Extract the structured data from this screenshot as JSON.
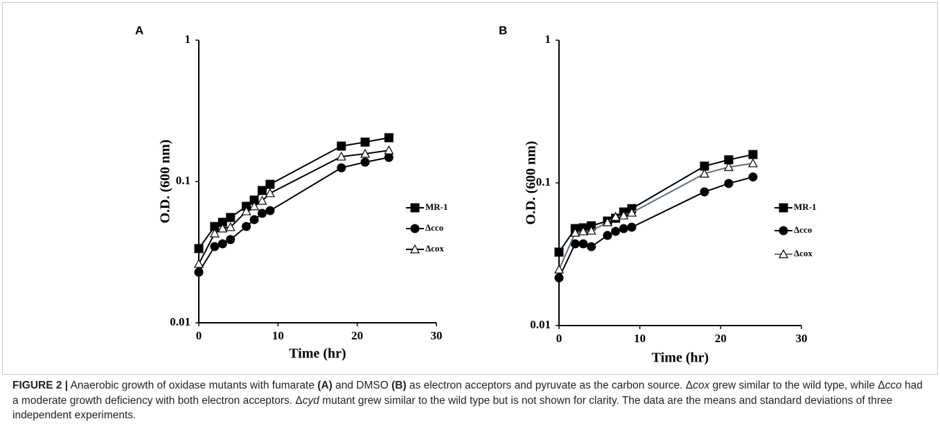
{
  "chart_data": [
    {
      "type": "line",
      "panel_label": "A",
      "ylabel": "O.D. (600 nm)",
      "xlabel": "Time (hr)",
      "x": [
        0,
        2,
        3,
        4,
        6,
        7,
        8,
        9,
        18,
        21,
        24
      ],
      "xlim": [
        0,
        30
      ],
      "xticks": [
        0,
        10,
        20,
        30
      ],
      "ylim": [
        0.01,
        1
      ],
      "yticks": [
        0.01,
        0.1,
        1
      ],
      "ylog": true,
      "legend": "right",
      "series": [
        {
          "name": "MR-1",
          "color": "#000000",
          "marker": "square",
          "values": [
            0.0335,
            0.048,
            0.0514,
            0.0556,
            0.0667,
            0.0738,
            0.0863,
            0.0955,
            0.178,
            0.19,
            0.204
          ]
        },
        {
          "name": "Δcco",
          "color": "#000000",
          "marker": "circle",
          "values": [
            0.0228,
            0.0346,
            0.0362,
            0.0388,
            0.048,
            0.0537,
            0.0595,
            0.0622,
            0.125,
            0.137,
            0.148
          ]
        },
        {
          "name": "Δcox",
          "color": "#000000",
          "marker": "triangle-open",
          "values": [
            0.0261,
            0.0429,
            0.0465,
            0.0475,
            0.0615,
            0.0667,
            0.073,
            0.0826,
            0.15,
            0.157,
            0.166
          ]
        }
      ]
    },
    {
      "type": "line",
      "panel_label": "B",
      "ylabel": "O.D. (600 nm)",
      "xlabel": "Time (hr)",
      "x": [
        0,
        2,
        3,
        4,
        6,
        7,
        8,
        9,
        18,
        21,
        24
      ],
      "xlim": [
        0,
        30
      ],
      "xticks": [
        0,
        10,
        20,
        30
      ],
      "ylim": [
        0.01,
        1
      ],
      "yticks": [
        0.01,
        0.1,
        1
      ],
      "ylog": true,
      "legend": "right",
      "series": [
        {
          "name": "MR-1",
          "color": "#000000",
          "marker": "square",
          "values": [
            0.0327,
            0.0478,
            0.0484,
            0.05,
            0.054,
            0.0565,
            0.0625,
            0.066,
            0.131,
            0.145,
            0.158
          ]
        },
        {
          "name": "Δcco",
          "color": "#000000",
          "marker": "circle",
          "values": [
            0.0216,
            0.0374,
            0.0374,
            0.0357,
            0.0428,
            0.0457,
            0.0478,
            0.0489,
            0.0865,
            0.099,
            0.11
          ]
        },
        {
          "name": "Δcox",
          "color": "#5b7083",
          "marker": "triangle-open",
          "values": [
            0.0247,
            0.0447,
            0.0457,
            0.0462,
            0.0529,
            0.0578,
            0.0591,
            0.0618,
            0.116,
            0.129,
            0.137
          ]
        }
      ]
    }
  ],
  "caption": {
    "runs": [
      "FIGURE 2 |",
      " Anaerobic growth of oxidase mutants with fumarate ",
      "(A)",
      " and DMSO ",
      "(B)",
      " as electron acceptors and pyruvate as the carbon source. Δ",
      "cox",
      " grew similar to the wild type, while Δ",
      "cco",
      " had a moderate growth deficiency with both electron acceptors. Δ",
      "cyd",
      " mutant grew similar to the wild type but is not shown for clarity. The data are the means and standard deviations of three independent experiments."
    ]
  }
}
